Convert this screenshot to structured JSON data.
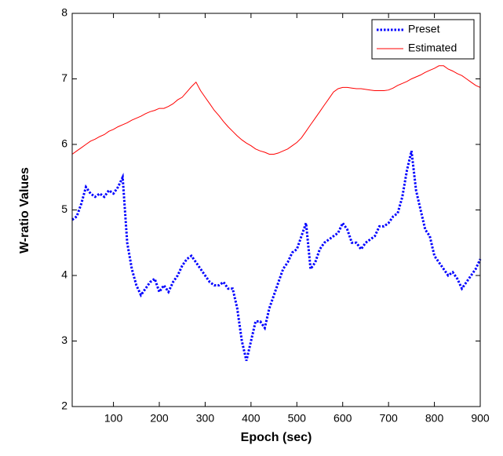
{
  "chart_data": {
    "type": "line",
    "x_label": "Epoch (sec)",
    "y_label": "W-ratio Values",
    "x": [
      10,
      20,
      30,
      40,
      50,
      60,
      70,
      80,
      90,
      100,
      110,
      120,
      130,
      140,
      150,
      160,
      170,
      180,
      190,
      200,
      210,
      220,
      230,
      240,
      250,
      260,
      270,
      280,
      290,
      300,
      310,
      320,
      330,
      340,
      350,
      360,
      370,
      380,
      390,
      400,
      410,
      420,
      430,
      440,
      450,
      460,
      470,
      480,
      490,
      500,
      510,
      520,
      530,
      540,
      550,
      560,
      570,
      580,
      590,
      600,
      610,
      620,
      630,
      640,
      650,
      660,
      670,
      680,
      690,
      700,
      710,
      720,
      730,
      740,
      750,
      760,
      770,
      780,
      790,
      800,
      810,
      820,
      830,
      840,
      850,
      860,
      870,
      880,
      890,
      900
    ],
    "series": [
      {
        "name": "Preset",
        "color": "#0000ff",
        "values": [
          4.85,
          4.9,
          5.1,
          5.35,
          5.25,
          5.2,
          5.25,
          5.2,
          5.3,
          5.25,
          5.35,
          5.5,
          4.5,
          4.1,
          3.85,
          3.7,
          3.8,
          3.9,
          3.95,
          3.75,
          3.85,
          3.75,
          3.9,
          4.0,
          4.15,
          4.25,
          4.3,
          4.2,
          4.1,
          4.0,
          3.9,
          3.85,
          3.85,
          3.9,
          3.8,
          3.8,
          3.5,
          3.0,
          2.7,
          3.0,
          3.3,
          3.3,
          3.2,
          3.5,
          3.7,
          3.9,
          4.1,
          4.2,
          4.35,
          4.4,
          4.6,
          4.8,
          4.1,
          4.2,
          4.4,
          4.5,
          4.55,
          4.6,
          4.65,
          4.8,
          4.7,
          4.5,
          4.5,
          4.4,
          4.5,
          4.55,
          4.6,
          4.75,
          4.75,
          4.8,
          4.9,
          4.95,
          5.2,
          5.6,
          5.9,
          5.3,
          5.0,
          4.7,
          4.6,
          4.3,
          4.2,
          4.1,
          4.0,
          4.05,
          3.95,
          3.8,
          3.9,
          4.0,
          4.1,
          4.25
        ]
      },
      {
        "name": "Estimated",
        "color": "#ff0000",
        "values": [
          5.85,
          5.9,
          5.95,
          6.0,
          6.05,
          6.08,
          6.12,
          6.15,
          6.2,
          6.23,
          6.27,
          6.3,
          6.33,
          6.37,
          6.4,
          6.43,
          6.47,
          6.5,
          6.52,
          6.55,
          6.55,
          6.58,
          6.62,
          6.68,
          6.72,
          6.8,
          6.88,
          6.95,
          6.82,
          6.72,
          6.62,
          6.52,
          6.44,
          6.35,
          6.27,
          6.2,
          6.13,
          6.07,
          6.02,
          5.98,
          5.93,
          5.9,
          5.88,
          5.85,
          5.85,
          5.87,
          5.9,
          5.93,
          5.98,
          6.03,
          6.1,
          6.2,
          6.3,
          6.4,
          6.5,
          6.6,
          6.7,
          6.8,
          6.85,
          6.87,
          6.87,
          6.86,
          6.85,
          6.85,
          6.84,
          6.83,
          6.82,
          6.82,
          6.82,
          6.83,
          6.86,
          6.9,
          6.93,
          6.96,
          7.0,
          7.03,
          7.06,
          7.1,
          7.13,
          7.16,
          7.2,
          7.2,
          7.15,
          7.12,
          7.08,
          7.05,
          7.0,
          6.95,
          6.9,
          6.87
        ]
      }
    ],
    "xlim": [
      10,
      900
    ],
    "ylim": [
      2,
      8
    ],
    "xticks": [
      100,
      200,
      300,
      400,
      500,
      600,
      700,
      800,
      900
    ],
    "yticks": [
      2,
      3,
      4,
      5,
      6,
      7,
      8
    ],
    "legend": "upper right"
  }
}
